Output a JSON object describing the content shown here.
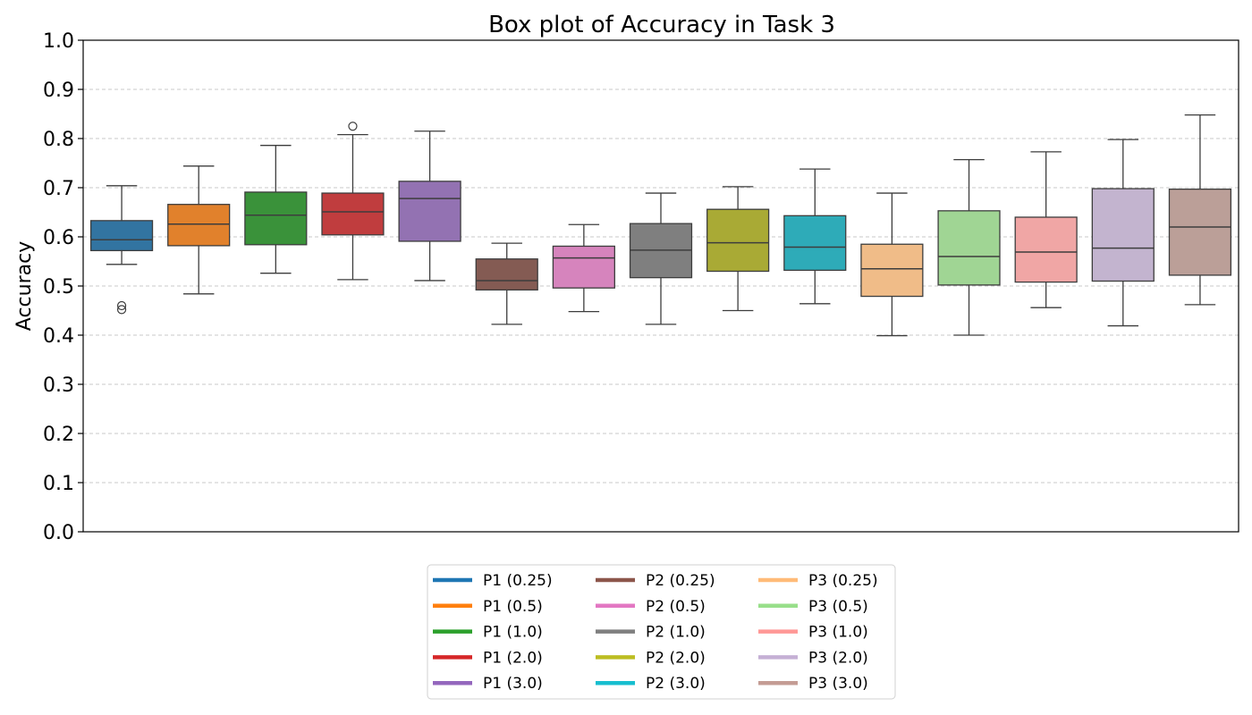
{
  "chart_data": {
    "type": "box",
    "title": "Box plot of Accuracy in Task 3",
    "xlabel": "",
    "ylabel": "Accuracy",
    "ylim": [
      0.0,
      1.0
    ],
    "yticks": [
      "0.0",
      "0.1",
      "0.2",
      "0.3",
      "0.4",
      "0.5",
      "0.6",
      "0.7",
      "0.8",
      "0.9",
      "1.0"
    ],
    "grid": "y-dashed",
    "legend_position": "bottom-center",
    "series": [
      {
        "name": "P1 (0.25)",
        "color": "#1f77b4",
        "fill": "#3274a1",
        "whisker_low": 0.544,
        "q1": 0.572,
        "median": 0.594,
        "q3": 0.633,
        "whisker_high": 0.704,
        "outliers": [
          0.46,
          0.452
        ]
      },
      {
        "name": "P1 (0.5)",
        "color": "#ff7f0e",
        "fill": "#e1812c",
        "whisker_low": 0.484,
        "q1": 0.582,
        "median": 0.626,
        "q3": 0.666,
        "whisker_high": 0.744,
        "outliers": []
      },
      {
        "name": "P1 (1.0)",
        "color": "#2ca02c",
        "fill": "#3a923a",
        "whisker_low": 0.526,
        "q1": 0.584,
        "median": 0.644,
        "q3": 0.691,
        "whisker_high": 0.786,
        "outliers": []
      },
      {
        "name": "P1 (2.0)",
        "color": "#d62728",
        "fill": "#c03d3e",
        "whisker_low": 0.513,
        "q1": 0.604,
        "median": 0.651,
        "q3": 0.689,
        "whisker_high": 0.808,
        "outliers": [
          0.825
        ]
      },
      {
        "name": "P1 (3.0)",
        "color": "#9467bd",
        "fill": "#9372b2",
        "whisker_low": 0.511,
        "q1": 0.591,
        "median": 0.678,
        "q3": 0.713,
        "whisker_high": 0.815,
        "outliers": []
      },
      {
        "name": "P2 (0.25)",
        "color": "#8c564b",
        "fill": "#845b53",
        "whisker_low": 0.422,
        "q1": 0.492,
        "median": 0.511,
        "q3": 0.555,
        "whisker_high": 0.587,
        "outliers": []
      },
      {
        "name": "P2 (0.5)",
        "color": "#e377c2",
        "fill": "#d684bd",
        "whisker_low": 0.448,
        "q1": 0.496,
        "median": 0.557,
        "q3": 0.581,
        "whisker_high": 0.625,
        "outliers": []
      },
      {
        "name": "P2 (1.0)",
        "color": "#7f7f7f",
        "fill": "#7f7f7f",
        "whisker_low": 0.422,
        "q1": 0.517,
        "median": 0.573,
        "q3": 0.627,
        "whisker_high": 0.689,
        "outliers": []
      },
      {
        "name": "P2 (2.0)",
        "color": "#bcbd22",
        "fill": "#a9aa35",
        "whisker_low": 0.45,
        "q1": 0.53,
        "median": 0.588,
        "q3": 0.656,
        "whisker_high": 0.702,
        "outliers": []
      },
      {
        "name": "P2 (3.0)",
        "color": "#17becf",
        "fill": "#2eabb8",
        "whisker_low": 0.464,
        "q1": 0.532,
        "median": 0.579,
        "q3": 0.643,
        "whisker_high": 0.738,
        "outliers": []
      },
      {
        "name": "P3 (0.25)",
        "color": "#ffbb78",
        "fill": "#f0bc88",
        "whisker_low": 0.399,
        "q1": 0.479,
        "median": 0.535,
        "q3": 0.585,
        "whisker_high": 0.689,
        "outliers": []
      },
      {
        "name": "P3 (0.5)",
        "color": "#98df8a",
        "fill": "#a0d594",
        "whisker_low": 0.4,
        "q1": 0.502,
        "median": 0.56,
        "q3": 0.653,
        "whisker_high": 0.757,
        "outliers": []
      },
      {
        "name": "P3 (1.0)",
        "color": "#ff9896",
        "fill": "#f0a6a5",
        "whisker_low": 0.456,
        "q1": 0.508,
        "median": 0.569,
        "q3": 0.64,
        "whisker_high": 0.773,
        "outliers": []
      },
      {
        "name": "P3 (2.0)",
        "color": "#c5b0d5",
        "fill": "#c3b4cf",
        "whisker_low": 0.419,
        "q1": 0.51,
        "median": 0.577,
        "q3": 0.698,
        "whisker_high": 0.798,
        "outliers": []
      },
      {
        "name": "P3 (3.0)",
        "color": "#c49c94",
        "fill": "#bb9f98",
        "whisker_low": 0.462,
        "q1": 0.522,
        "median": 0.62,
        "q3": 0.697,
        "whisker_high": 0.848,
        "outliers": []
      }
    ]
  }
}
